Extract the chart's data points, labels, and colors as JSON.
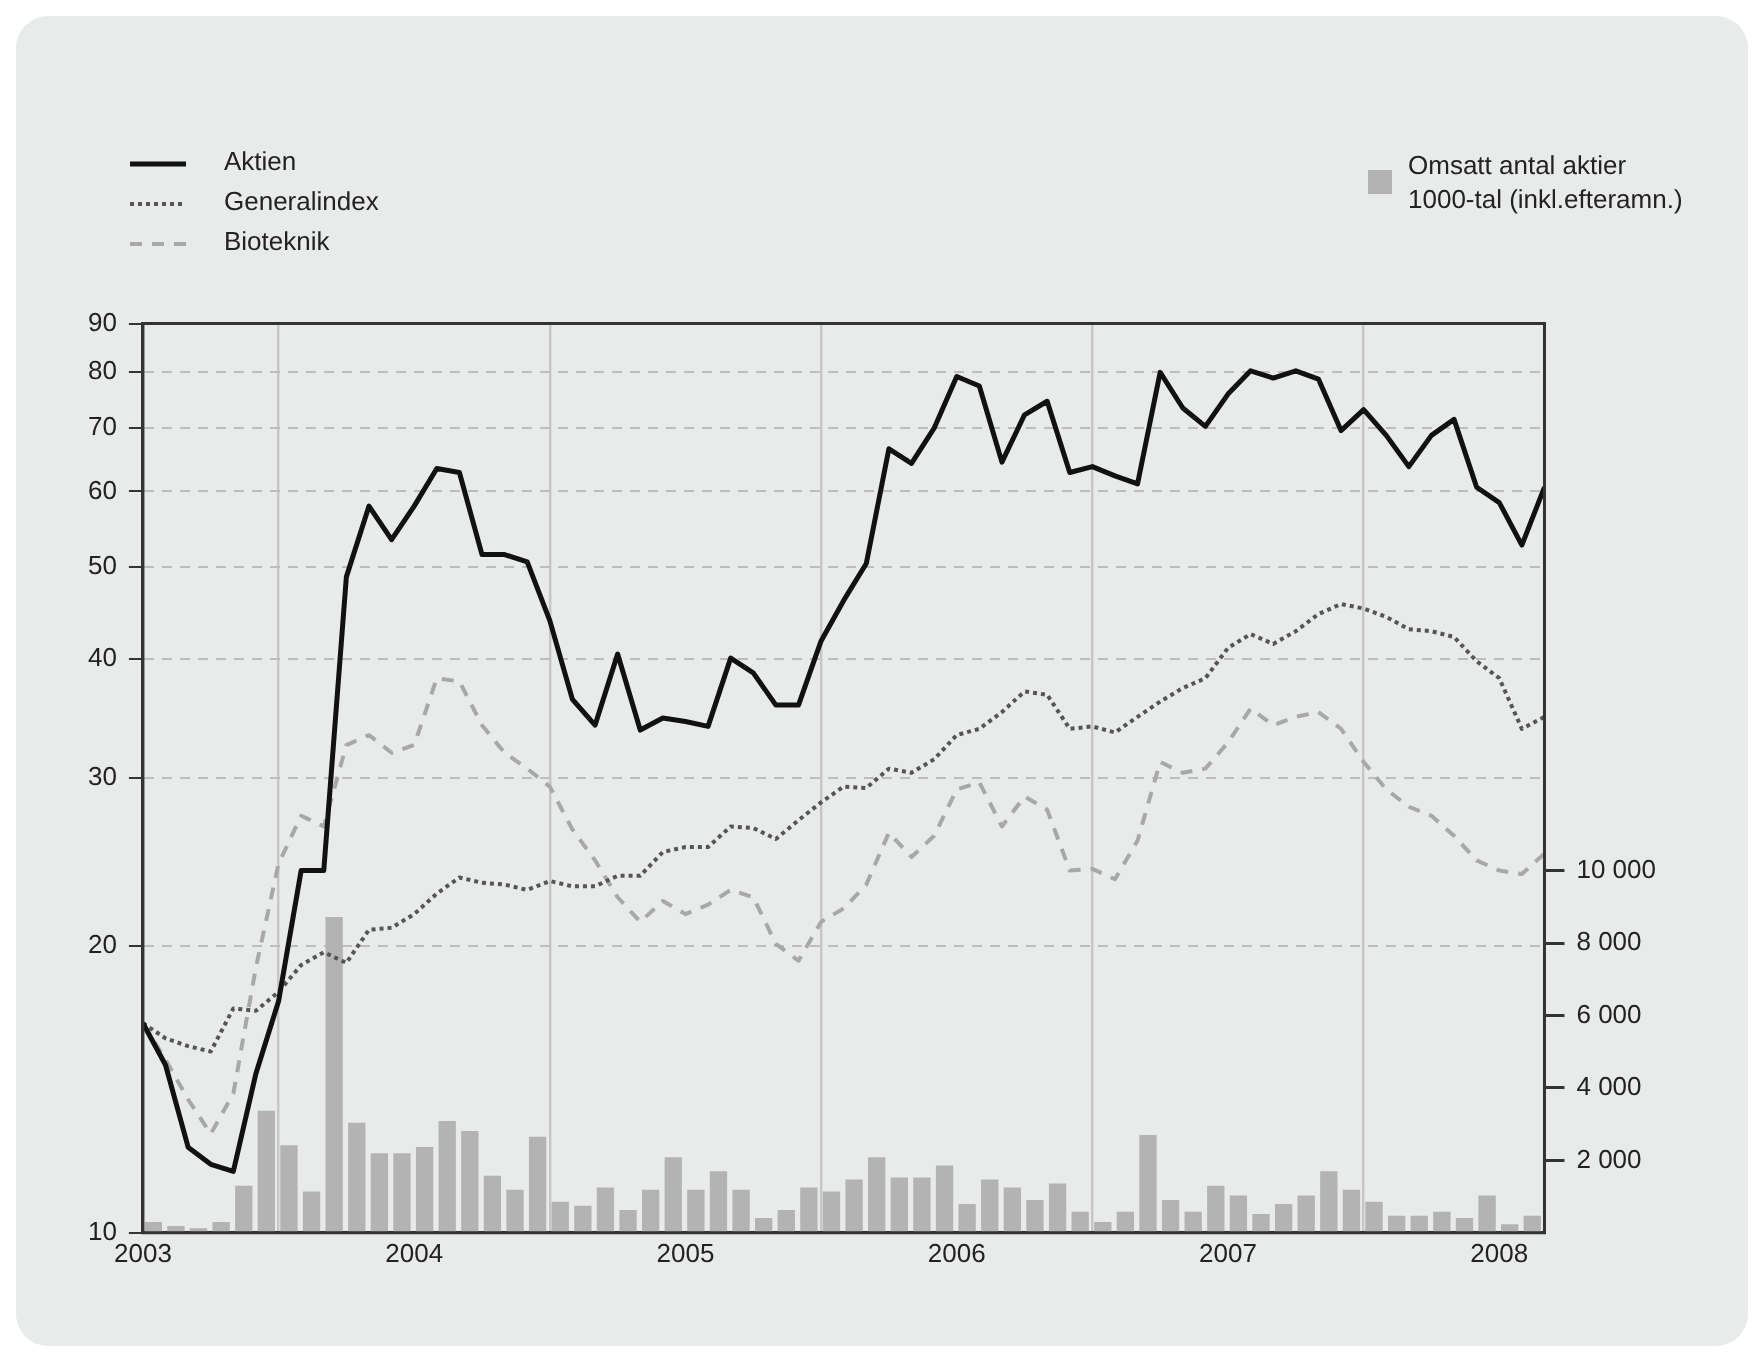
{
  "chart_data": {
    "type": "line",
    "x": [
      "2003-01",
      "2003-02",
      "2003-03",
      "2003-04",
      "2003-05",
      "2003-06",
      "2003-07",
      "2003-08",
      "2003-09",
      "2003-10",
      "2003-11",
      "2003-12",
      "2004-01",
      "2004-02",
      "2004-03",
      "2004-04",
      "2004-05",
      "2004-06",
      "2004-07",
      "2004-08",
      "2004-09",
      "2004-10",
      "2004-11",
      "2004-12",
      "2005-01",
      "2005-02",
      "2005-03",
      "2005-04",
      "2005-05",
      "2005-06",
      "2005-07",
      "2005-08",
      "2005-09",
      "2005-10",
      "2005-11",
      "2005-12",
      "2006-01",
      "2006-02",
      "2006-03",
      "2006-04",
      "2006-05",
      "2006-06",
      "2006-07",
      "2006-08",
      "2006-09",
      "2006-10",
      "2006-11",
      "2006-12",
      "2007-01",
      "2007-02",
      "2007-03",
      "2007-04",
      "2007-05",
      "2007-06",
      "2007-07",
      "2007-08",
      "2007-09",
      "2007-10",
      "2007-11",
      "2007-12",
      "2008-01",
      "2008-02",
      "2008-03"
    ],
    "series": [
      {
        "name": "Bioteknik",
        "color": "#a8a8a8",
        "line_style": "dashed",
        "values": [
          16.6,
          15.2,
          13.8,
          12.7,
          14.0,
          19.0,
          24.4,
          27.4,
          26.7,
          32.5,
          33.3,
          31.9,
          32.5,
          38.2,
          37.9,
          34.1,
          31.9,
          30.7,
          29.4,
          26.5,
          24.6,
          22.5,
          21.2,
          22.3,
          21.6,
          22.1,
          22.9,
          22.5,
          20.1,
          19.3,
          21.2,
          21.9,
          23.2,
          26.3,
          24.8,
          26.1,
          29.2,
          29.7,
          26.7,
          28.7,
          27.8,
          24.0,
          24.1,
          23.5,
          25.8,
          31.2,
          30.4,
          30.7,
          32.7,
          35.5,
          34.1,
          34.8,
          35.2,
          33.8,
          31.2,
          29.2,
          28.0,
          27.4,
          26.1,
          24.6,
          24.0,
          23.8,
          25.0
        ]
      },
      {
        "name": "Generalindex",
        "color": "#555555",
        "line_style": "dotted",
        "values": [
          16.6,
          16.0,
          15.7,
          15.5,
          17.2,
          17.1,
          17.9,
          19.1,
          19.7,
          19.2,
          20.8,
          20.9,
          21.6,
          22.7,
          23.6,
          23.3,
          23.2,
          22.9,
          23.4,
          23.1,
          23.1,
          23.7,
          23.7,
          25.1,
          25.4,
          25.4,
          26.7,
          26.6,
          25.9,
          27.1,
          28.3,
          29.4,
          29.3,
          30.7,
          30.4,
          31.4,
          33.3,
          33.8,
          35.2,
          37.0,
          36.7,
          33.8,
          34.0,
          33.5,
          34.8,
          36.1,
          37.3,
          38.2,
          41.1,
          42.5,
          41.5,
          42.8,
          44.6,
          45.7,
          45.2,
          44.3,
          43.0,
          42.8,
          42.2,
          39.8,
          38.2,
          33.8,
          34.8
        ]
      },
      {
        "name": "Aktien",
        "color": "#111111",
        "line_style": "solid",
        "values": [
          16.6,
          15.0,
          12.3,
          11.8,
          11.6,
          14.7,
          17.5,
          24.0,
          24.0,
          48.8,
          57.9,
          53.4,
          57.9,
          63.4,
          62.8,
          51.5,
          51.5,
          50.6,
          43.9,
          36.3,
          34.1,
          40.5,
          33.7,
          34.7,
          34.4,
          34.0,
          40.1,
          38.7,
          35.8,
          35.8,
          41.8,
          46.1,
          50.4,
          66.5,
          64.2,
          69.9,
          79.2,
          77.4,
          64.4,
          72.2,
          74.6,
          62.8,
          63.7,
          62.3,
          61.1,
          80.0,
          73.4,
          70.2,
          75.9,
          80.3,
          78.9,
          80.3,
          78.7,
          69.5,
          73.1,
          68.7,
          63.7,
          68.7,
          71.4,
          60.6,
          58.4,
          52.7,
          60.6
        ]
      },
      {
        "name": "Omsatt antal aktier 1000-tal (inkl.efteramn.)",
        "type": "bar",
        "axis": "y2",
        "color": "#b3b3b3",
        "x": [
          "2003-01-15",
          "2003-02-15",
          "2003-03-15",
          "2003-04-15",
          "2003-05-15",
          "2003-06-15",
          "2003-07-15",
          "2003-08-15",
          "2003-09-15",
          "2003-10-15",
          "2003-11-15",
          "2003-12-15",
          "2004-01-15",
          "2004-02-15",
          "2004-03-15",
          "2004-04-15",
          "2004-05-15",
          "2004-06-15",
          "2004-07-15",
          "2004-08-15",
          "2004-09-15",
          "2004-10-15",
          "2004-11-15",
          "2004-12-15",
          "2005-01-15",
          "2005-02-15",
          "2005-03-15",
          "2005-04-15",
          "2005-05-15",
          "2005-06-15",
          "2005-07-15",
          "2005-08-15",
          "2005-09-15",
          "2005-10-15",
          "2005-11-15",
          "2005-12-15",
          "2006-01-15",
          "2006-02-15",
          "2006-03-15",
          "2006-04-15",
          "2006-05-15",
          "2006-06-15",
          "2006-07-15",
          "2006-08-15",
          "2006-09-15",
          "2006-10-15",
          "2006-11-15",
          "2006-12-15",
          "2007-01-15",
          "2007-02-15",
          "2007-03-15",
          "2007-04-15",
          "2007-05-15",
          "2007-06-15",
          "2007-07-15",
          "2007-08-15",
          "2007-09-15",
          "2007-10-15",
          "2007-11-15",
          "2007-12-15",
          "2008-01-15",
          "2008-02-15"
        ],
        "values": [
          280,
          170,
          110,
          280,
          1280,
          3350,
          2400,
          1120,
          8700,
          3020,
          2180,
          2180,
          2350,
          3070,
          2790,
          1560,
          1170,
          2630,
          840,
          730,
          1230,
          610,
          1170,
          2070,
          1170,
          1680,
          1170,
          390,
          610,
          1230,
          1120,
          1450,
          2070,
          1510,
          1510,
          1840,
          780,
          1450,
          1230,
          890,
          1340,
          560,
          280,
          560,
          2680,
          890,
          560,
          1280,
          1010,
          500,
          780,
          1010,
          1680,
          1170,
          840,
          450,
          450,
          560,
          390,
          1010,
          220,
          450
        ]
      }
    ],
    "xlim": [
      "2003-01",
      "2008-03"
    ],
    "xticks": [
      "2003",
      "2004",
      "2005",
      "2006",
      "2007",
      "2008"
    ],
    "ylim": [
      10,
      90
    ],
    "yticks": [
      10,
      20,
      30,
      40,
      50,
      60,
      70,
      80,
      90
    ],
    "log": "y",
    "y2lim": [
      0,
      25100
    ],
    "y2ticks": [
      {
        "value": 2000,
        "label": "2 000"
      },
      {
        "value": 4000,
        "label": "4 000"
      },
      {
        "value": 6000,
        "label": "6 000"
      },
      {
        "value": 8000,
        "label": "8 000"
      },
      {
        "value": 10000,
        "label": "10 000"
      }
    ],
    "grid": true,
    "legend": "top",
    "marker": "none"
  }
}
